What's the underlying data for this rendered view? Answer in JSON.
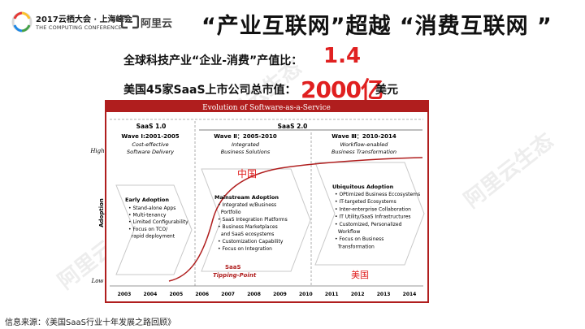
{
  "header": {
    "event_year": "2017云栖大会 · 上海峰会",
    "event_sub": "THE COMPUTING CONFERENCE",
    "brand": "阿里云",
    "title": "“产业互联网”超越 “消费互联网 ”"
  },
  "stats": {
    "line1_label": "全球科技产业“企业-消费”产值比：",
    "line1_value": "1.4",
    "line2_label": "美国45家SaaS上市公司总市值：",
    "line2_value": "2000亿",
    "line2_unit": "美元"
  },
  "watermark": "阿里云生态",
  "source": "信息来源：《美国SaaS行业十年发展之路回顾》",
  "chart": {
    "title": "Evolution of Software-as-a-Service",
    "y_axis_label": "Adoption",
    "y_high": "High",
    "y_low": "Low",
    "years": [
      "2003",
      "2004",
      "2005",
      "2006",
      "2007",
      "2008",
      "2009",
      "2010",
      "2011",
      "2012",
      "2013",
      "2014"
    ],
    "saas1": "SaaS 1.0",
    "saas2": "SaaS 2.0",
    "wave1": {
      "title": "Wave Ⅰ:2001-2005",
      "sub1": "Cost-effective",
      "sub2": "Software Delivery"
    },
    "wave2": {
      "title": "Wave Ⅱ：2005-2010",
      "sub1": "Integrated",
      "sub2": "Business Solutions"
    },
    "wave3": {
      "title": "Wave Ⅲ：2010-2014",
      "sub1": "Workflow-enabled",
      "sub2": "Business Transformation"
    },
    "early": {
      "title": "Early Adoption",
      "items": [
        "• Stand-alone Apps",
        "• Multi-tenancy",
        "• Limited Configurability",
        "• Focus on TCO/",
        "  rapid deployment"
      ]
    },
    "mainstream": {
      "title": "Mainstream Adoption",
      "items": [
        "• Integrated w/Business",
        "  Portfolio",
        "• SaaS Integration Platforms",
        "• Business Marketplaces",
        "  and SaaS ecosystems",
        "• Customization Capability",
        "• Focus on Integration"
      ]
    },
    "ubiquitous": {
      "title": "Ubiquitous Adoption",
      "items": [
        "• OPtimized Business Eccosystems",
        "• IT-targeted Ecosystems",
        "• Inter-enterprise Collaboration",
        "• IT Utility/SaaS Infrastructures",
        "• Customized, Personalized",
        "  Workflow",
        "• Focus on Business",
        "  Transformation"
      ]
    },
    "china": "中国",
    "usa": "美国",
    "tipping1": "SaaS",
    "tipping2": "Tipping-Point",
    "colors": {
      "frame": "#b01e1e",
      "accent": "#e02020",
      "arrow": "#cccccc"
    }
  }
}
